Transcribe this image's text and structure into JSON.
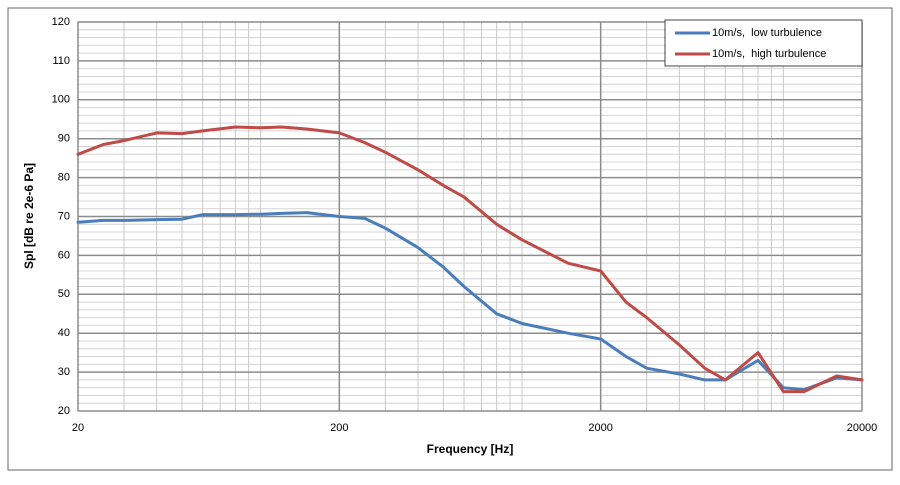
{
  "chart_data": {
    "type": "line",
    "x_label": "Frequency [Hz]",
    "y_label": "Spl [dB re 2e-6 Pa]",
    "x": [
      20,
      25,
      30,
      40,
      50,
      60,
      80,
      100,
      120,
      150,
      200,
      250,
      300,
      400,
      500,
      600,
      800,
      1000,
      1500,
      2000,
      2500,
      3000,
      4000,
      5000,
      6000,
      8000,
      10000,
      12000,
      16000,
      20000
    ],
    "series": [
      {
        "name": "10m/s,  low turbulence",
        "color": "#4a7ebb",
        "values": [
          68.5,
          69,
          69,
          69.2,
          69.3,
          70.5,
          70.5,
          70.6,
          70.8,
          71,
          70,
          69.5,
          67,
          62,
          57,
          52,
          45,
          42.5,
          40,
          38.5,
          34,
          31,
          29.5,
          28,
          28,
          33,
          26,
          25.5,
          28.5,
          28
        ]
      },
      {
        "name": "10m/s,  high turbulence",
        "color": "#be4b48",
        "values": [
          86,
          88.5,
          89.5,
          91.5,
          91.3,
          92,
          93,
          92.8,
          93,
          92.5,
          91.5,
          89,
          86.5,
          82,
          78,
          75,
          68,
          64,
          58,
          56,
          48,
          44,
          37,
          31,
          28,
          35,
          25,
          25,
          29,
          28
        ]
      }
    ],
    "xscale": "log",
    "xlim": [
      20,
      20000
    ],
    "xticks": [
      20,
      200,
      2000,
      20000
    ],
    "ylim": [
      20,
      120
    ],
    "yticks": [
      20,
      30,
      40,
      50,
      60,
      70,
      80,
      90,
      100,
      110,
      120
    ],
    "grid": true,
    "legend": "upper right"
  }
}
